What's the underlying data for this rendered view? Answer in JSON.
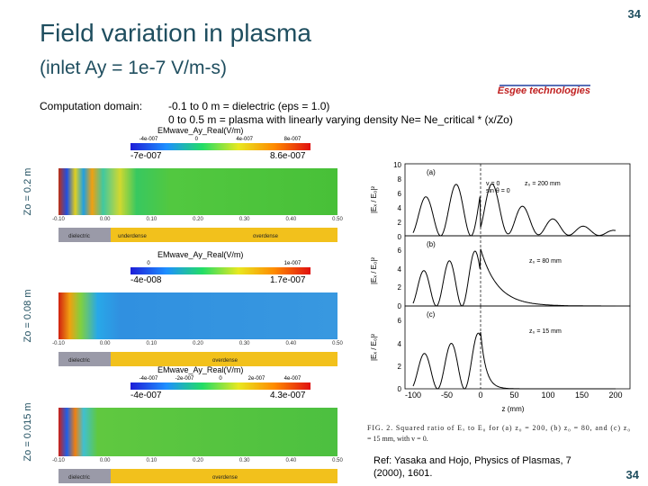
{
  "header": {
    "title": "Field variation in plasma",
    "subtitle": "(inlet Ay = 1e-7 V/m-s)",
    "page_number": "34"
  },
  "logo": "Esgee technologies",
  "domain": {
    "label": "Computation domain:",
    "lines": [
      "-0.1 to 0 m = dielectric (eps = 1.0)",
      "0 to 0.5 m = plasma with linearly varying density  Ne= Ne_critical * (x/Zo)"
    ]
  },
  "panels": [
    {
      "side_label": "Zo = 0.2 m",
      "field_title": "EMwave_Ay_Real(V/m)",
      "colorbar_ticks": [
        "-4e-007",
        "0",
        "4e-007",
        "8e-007"
      ],
      "min": "-7e-007",
      "max": "8.6e-007",
      "axis_ticks": [
        "-0.10",
        "0.00",
        "0.10",
        "0.20",
        "0.30",
        "0.40",
        "0.50"
      ],
      "regions": [
        "dielectric",
        "underdense",
        "overdense"
      ]
    },
    {
      "side_label": "Zo = 0.08 m",
      "field_title": "EMwave_Ay_Real(V/m)",
      "colorbar_ticks": [
        "0",
        "1e-007"
      ],
      "min": "-4e-008",
      "max": "1.7e-007",
      "axis_ticks": [
        "-0.10",
        "0.00",
        "0.10",
        "0.20",
        "0.30",
        "0.40",
        "0.50"
      ],
      "regions": [
        "dielectric",
        "overdense"
      ]
    },
    {
      "side_label": "Zo = 0.015 m",
      "field_title": "EMwave_Ay_Real(V/m)",
      "colorbar_ticks": [
        "-4e-007",
        "-2e-007",
        "0",
        "2e-007",
        "4e-007"
      ],
      "min": "-4e-007",
      "max": "4.3e-007",
      "axis_ticks": [
        "-0.10",
        "0.00",
        "0.10",
        "0.20",
        "0.30",
        "0.40",
        "0.50"
      ],
      "regions": [
        "dielectric",
        "overdense"
      ]
    }
  ],
  "figure": {
    "xticks": [
      "-100",
      "-50",
      "0",
      "50",
      "100",
      "150",
      "200"
    ],
    "xlabel": "z (mm)",
    "ylabel": "|Eₓ / E₀|²",
    "panels": [
      {
        "tag": "(a)",
        "yticks": [
          "10",
          "8",
          "6",
          "4",
          "2",
          "0"
        ],
        "notes": [
          "v = 0",
          "sin θ = 0",
          "z₀ = 200 mm"
        ]
      },
      {
        "tag": "(b)",
        "yticks": [
          "6",
          "4",
          "2",
          "0"
        ],
        "notes": [
          "z₀ = 80 mm"
        ]
      },
      {
        "tag": "(c)",
        "yticks": [
          "6",
          "4",
          "2",
          "0"
        ],
        "notes": [
          "z₀ = 15 mm"
        ]
      }
    ]
  },
  "caption": [
    "FIG. 2. Squared ratio of Eₓ to E₀ for (a) z₀ = 200, (b) z₀ = 80, and (c) z₀",
    "= 15 mm, with v = 0."
  ],
  "reference": [
    "Ref: Yasaka and Hojo, Physics of Plasmas, 7",
    "(2000), 1601."
  ],
  "footer": {
    "page_number": "34"
  }
}
